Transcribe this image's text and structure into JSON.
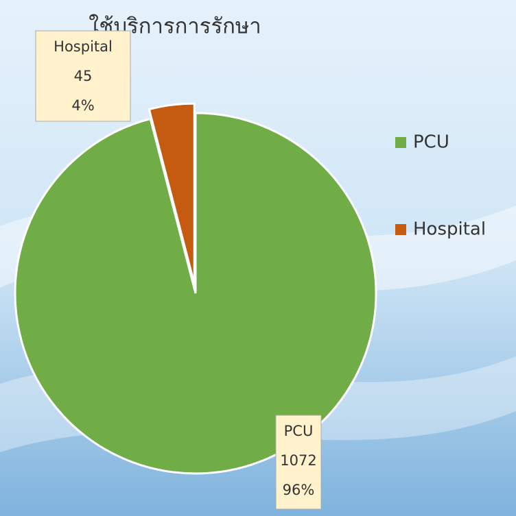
{
  "chart_data": {
    "type": "pie",
    "title": "ใช้บริการการรักษา",
    "categories": [
      "PCU",
      "Hospital"
    ],
    "values": [
      1072,
      45
    ],
    "percent_labels": [
      "96%",
      "4%"
    ],
    "colors": [
      "#70ad47",
      "#c55a11"
    ],
    "exploded": [
      false,
      true
    ],
    "legend": "right"
  }
}
